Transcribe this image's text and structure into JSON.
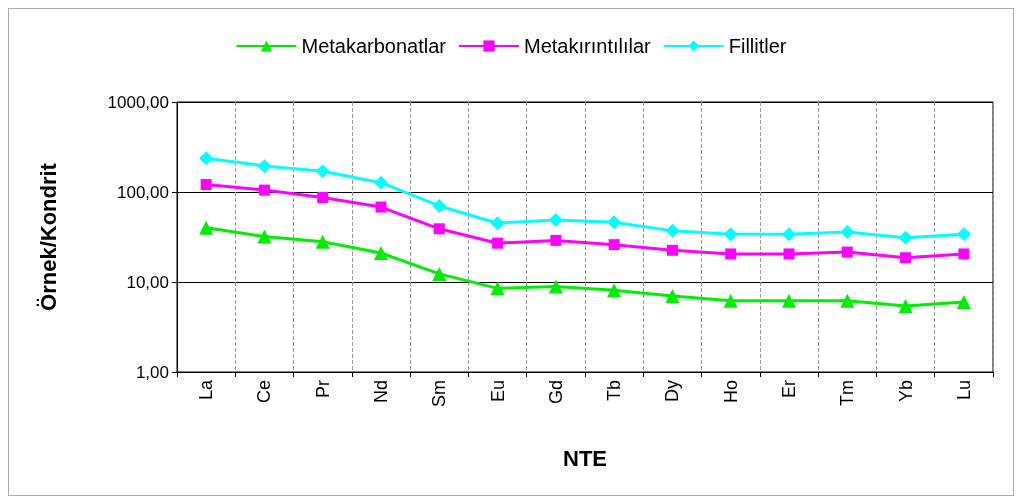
{
  "chart_data": {
    "type": "line",
    "xlabel": "NTE",
    "ylabel": "Örnek/Kondrit",
    "categories": [
      "La",
      "Ce",
      "Pr",
      "Nd",
      "Sm",
      "Eu",
      "Gd",
      "Tb",
      "Dy",
      "Ho",
      "Er",
      "Tm",
      "Yb",
      "Lu"
    ],
    "series": [
      {
        "name": "Metakarbonatlar",
        "color": "#00ee00",
        "marker": "triangle",
        "values": [
          40,
          32,
          28,
          21,
          12.3,
          8.5,
          8.9,
          8.1,
          7.0,
          6.2,
          6.2,
          6.2,
          5.4,
          6.0
        ]
      },
      {
        "name": "Metakırıntılılar",
        "color": "#ff00ff",
        "marker": "square",
        "values": [
          121,
          105,
          87,
          68,
          39,
          27,
          29,
          26,
          22.5,
          20.5,
          20.5,
          21.5,
          18.6,
          20.5
        ]
      },
      {
        "name": "Fillitler",
        "color": "#00ffff",
        "marker": "diamond",
        "values": [
          237,
          195,
          170,
          127,
          70,
          45,
          49,
          46,
          37,
          34,
          34,
          36,
          31,
          34
        ]
      }
    ],
    "log": "y",
    "ylim": [
      1,
      1000
    ],
    "yticks": [
      {
        "value": 1,
        "label": "1,00"
      },
      {
        "value": 10,
        "label": "10,00"
      },
      {
        "value": 100,
        "label": "100,00"
      },
      {
        "value": 1000,
        "label": "1000,00"
      }
    ],
    "grid": true,
    "legend": "top"
  }
}
